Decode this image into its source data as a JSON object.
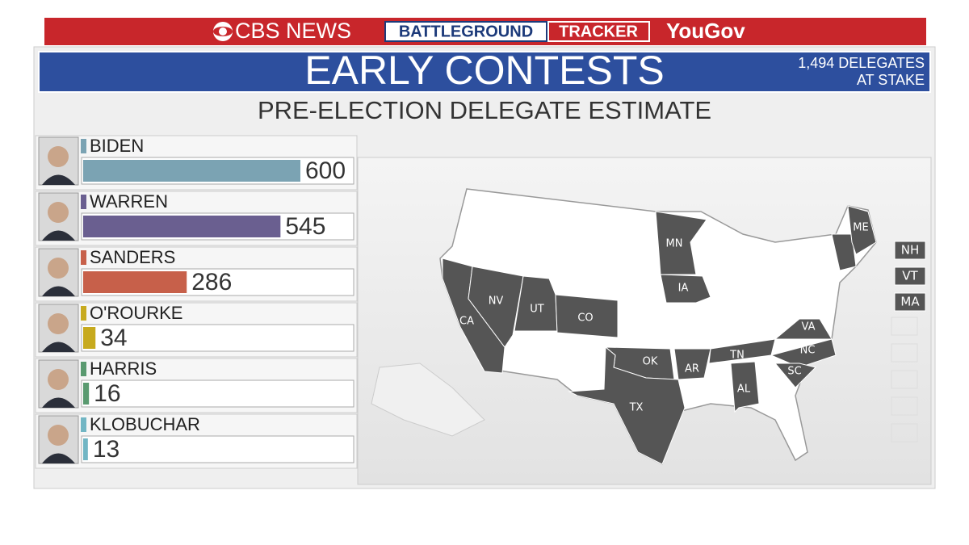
{
  "header": {
    "network": "CBS NEWS",
    "badge_left": "BATTLEGROUND",
    "badge_right": "TRACKER",
    "partner": "YouGov"
  },
  "chart_data": {
    "type": "bar",
    "orientation": "horizontal",
    "title": "EARLY CONTESTS",
    "note": [
      "1,494 DELEGATES",
      "AT STAKE"
    ],
    "subtitle": "PRE-ELECTION DELEGATE ESTIMATE",
    "categories": [
      "BIDEN",
      "WARREN",
      "SANDERS",
      "O'ROURKE",
      "HARRIS",
      "KLOBUCHAR"
    ],
    "values": [
      600,
      545,
      286,
      34,
      16,
      13
    ],
    "colors": [
      "#7ba3b3",
      "#6a5f90",
      "#c7604a",
      "#c7aa1e",
      "#5a9a70",
      "#72b6c4"
    ]
  },
  "map": {
    "states": [
      "CA",
      "NV",
      "UT",
      "CO",
      "MN",
      "IA",
      "OK",
      "TX",
      "AR",
      "TN",
      "AL",
      "VA",
      "NC",
      "SC",
      "ME"
    ],
    "callouts": [
      "NH",
      "VT",
      "MA"
    ]
  }
}
